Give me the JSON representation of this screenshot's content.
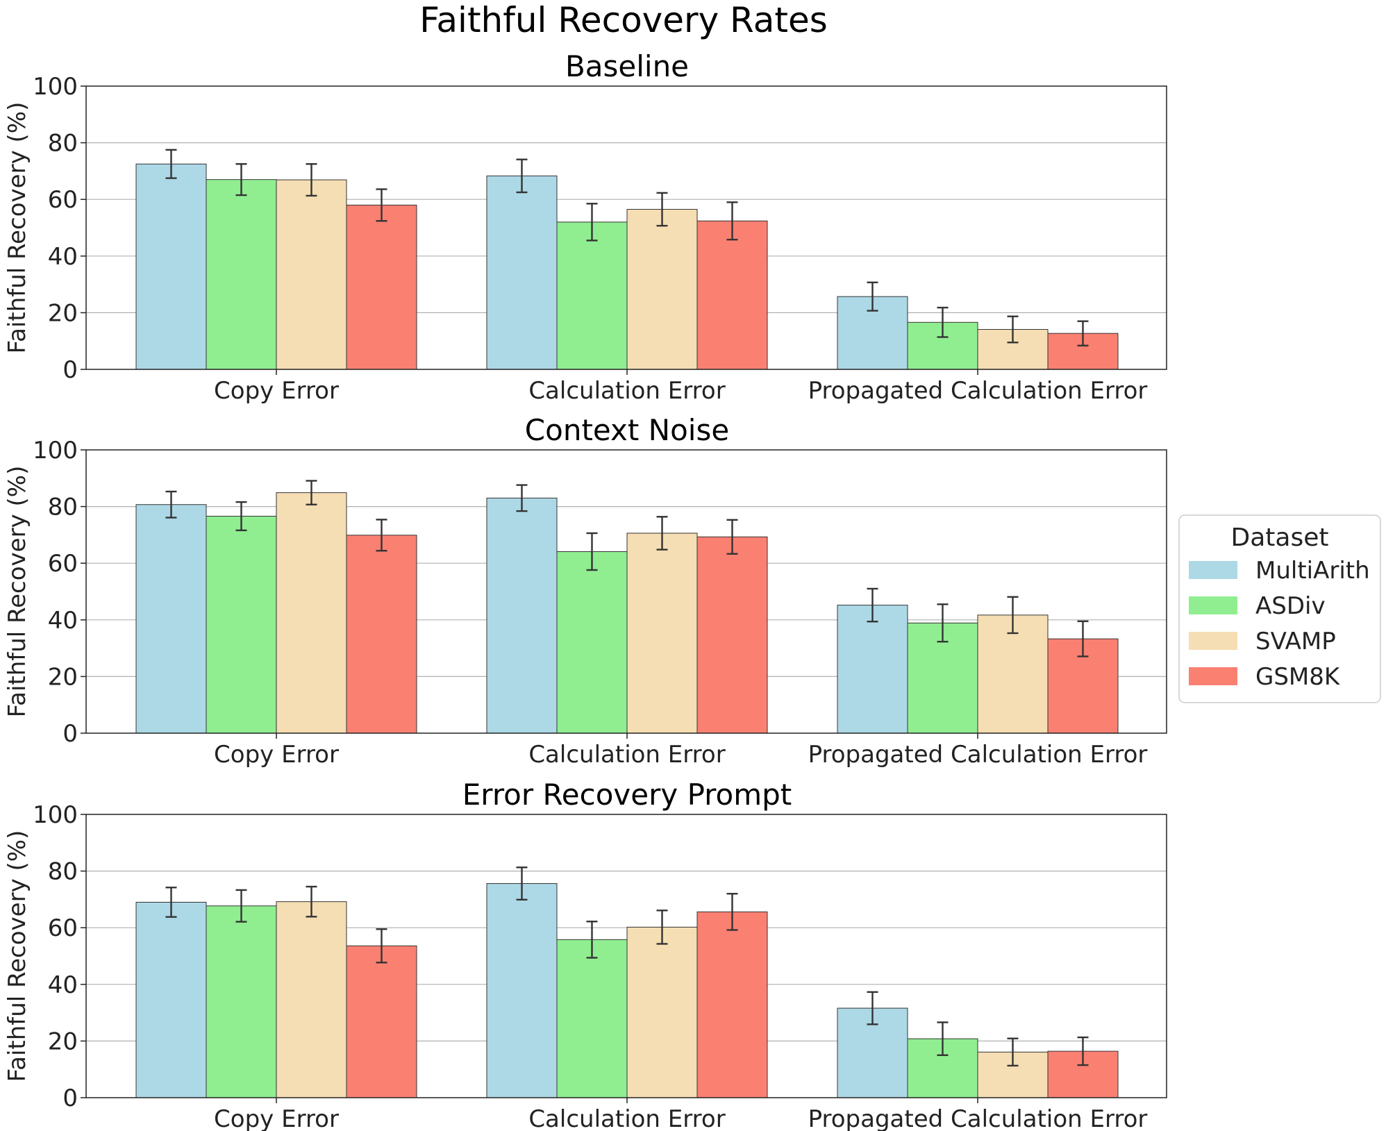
{
  "chart_data": {
    "type": "bar",
    "title": "Faithful Recovery Rates",
    "ylabel": "Faithful Recovery (%)",
    "ylim": [
      0,
      100
    ],
    "yticks": [
      0,
      20,
      40,
      60,
      80,
      100
    ],
    "grid": "y",
    "categories": [
      "Copy Error",
      "Calculation Error",
      "Propagated Calculation Error"
    ],
    "legend": {
      "title": "Dataset",
      "placement": "right",
      "entries": [
        {
          "name": "MultiArith",
          "color": "#add8e6"
        },
        {
          "name": "ASDiv",
          "color": "#90ee90"
        },
        {
          "name": "SVAMP",
          "color": "#f5deb3"
        },
        {
          "name": "GSM8K",
          "color": "#fa8072"
        }
      ]
    },
    "panels": [
      {
        "title": "Baseline",
        "series": [
          {
            "name": "MultiArith",
            "values": [
              72.5,
              68.3,
              25.7
            ],
            "error": [
              5.0,
              5.8,
              5.0
            ]
          },
          {
            "name": "ASDiv",
            "values": [
              67.0,
              52.0,
              16.6
            ],
            "error": [
              5.5,
              6.5,
              5.2
            ]
          },
          {
            "name": "SVAMP",
            "values": [
              66.9,
              56.5,
              14.1
            ],
            "error": [
              5.6,
              5.8,
              4.6
            ]
          },
          {
            "name": "GSM8K",
            "values": [
              58.0,
              52.4,
              12.7
            ],
            "error": [
              5.6,
              6.6,
              4.3
            ]
          }
        ]
      },
      {
        "title": "Context Noise",
        "series": [
          {
            "name": "MultiArith",
            "values": [
              80.7,
              83.0,
              45.2
            ],
            "error": [
              4.6,
              4.6,
              5.8
            ]
          },
          {
            "name": "ASDiv",
            "values": [
              76.6,
              64.1,
              38.9
            ],
            "error": [
              5.0,
              6.5,
              6.6
            ]
          },
          {
            "name": "SVAMP",
            "values": [
              84.9,
              70.6,
              41.7
            ],
            "error": [
              4.2,
              5.8,
              6.4
            ]
          },
          {
            "name": "GSM8K",
            "values": [
              69.9,
              69.3,
              33.3
            ],
            "error": [
              5.5,
              6.0,
              6.2
            ]
          }
        ]
      },
      {
        "title": "Error Recovery Prompt",
        "series": [
          {
            "name": "MultiArith",
            "values": [
              69.0,
              75.6,
              31.6
            ],
            "error": [
              5.2,
              5.7,
              5.7
            ]
          },
          {
            "name": "ASDiv",
            "values": [
              67.7,
              55.8,
              20.8
            ],
            "error": [
              5.6,
              6.4,
              5.8
            ]
          },
          {
            "name": "SVAMP",
            "values": [
              69.2,
              60.2,
              16.1
            ],
            "error": [
              5.3,
              5.9,
              4.8
            ]
          },
          {
            "name": "GSM8K",
            "values": [
              53.6,
              65.6,
              16.4
            ],
            "error": [
              5.9,
              6.4,
              4.9
            ]
          }
        ]
      }
    ]
  }
}
